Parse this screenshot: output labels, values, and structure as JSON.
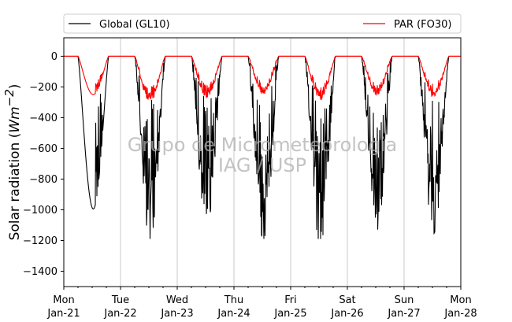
{
  "chart_data": {
    "type": "line",
    "ylabel": "Solar radiation (Wm−2)",
    "ylabel_main": "Solar radiation (",
    "ylabel_unit": "Wm",
    "ylabel_exp": "−2",
    "ylabel_close": ")",
    "ylim": [
      -1500,
      120
    ],
    "xlim_days": [
      0,
      7
    ],
    "yticks": [
      0,
      -200,
      -400,
      -600,
      -800,
      -1000,
      -1200,
      -1400
    ],
    "ytick_labels": [
      "0",
      "−200",
      "−400",
      "−600",
      "−800",
      "−1000",
      "−1200",
      "−1400"
    ],
    "xticks": [
      {
        "day": "Mon",
        "date": "Jan-21"
      },
      {
        "day": "Tue",
        "date": "Jan-22"
      },
      {
        "day": "Wed",
        "date": "Jan-23"
      },
      {
        "day": "Thu",
        "date": "Jan-24"
      },
      {
        "day": "Fri",
        "date": "Jan-25"
      },
      {
        "day": "Sat",
        "date": "Jan-26"
      },
      {
        "day": "Sun",
        "date": "Jan-27"
      },
      {
        "day": "Mon",
        "date": "Jan-28"
      }
    ],
    "grid": "vertical",
    "legend_position": "top",
    "watermark": [
      "Grupo de Micrometeorologia",
      "IAG / USP"
    ],
    "series": [
      {
        "name": "Global (GL10)",
        "color": "#000000",
        "daily_minimum": [
          -995,
          -1140,
          -1055,
          -1135,
          -1170,
          -1080,
          -1100
        ]
      },
      {
        "name": "PAR (FO30)",
        "color": "#ff0000",
        "daily_minimum": [
          -250,
          -300,
          -275,
          -250,
          -290,
          -255,
          -270
        ]
      }
    ]
  }
}
